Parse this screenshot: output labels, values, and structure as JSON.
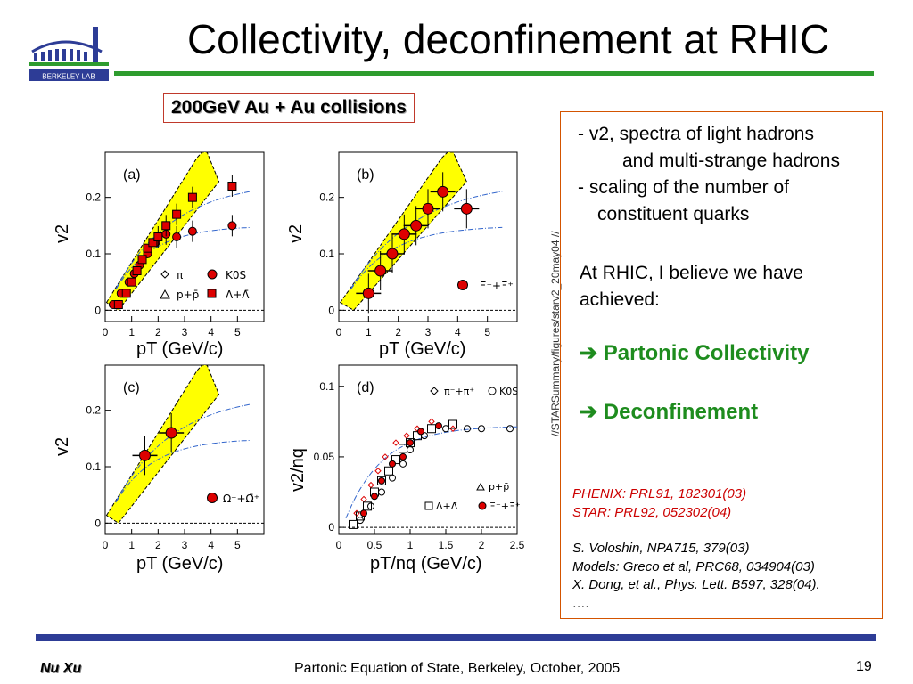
{
  "header": {
    "logo_text": "BERKELEY LAB",
    "title": "Collectivity, deconfinement at RHIC",
    "subtitle": "200GeV Au + Au collisions"
  },
  "figure_caption": "//STARSummary/figures/starv2_20may04 //",
  "panels": {
    "a": {
      "label": "(a)",
      "ylabel": "v2",
      "xlabel": "pT (GeV/c)",
      "legend": [
        "π",
        "K0S",
        "p+p̄",
        "Λ+Λ̄"
      ]
    },
    "b": {
      "label": "(b)",
      "ylabel": "v2",
      "xlabel": "pT (GeV/c)",
      "legend": [
        "Ξ⁻+Ξ̄⁺"
      ]
    },
    "c": {
      "label": "(c)",
      "ylabel": "v2",
      "xlabel": "pT (GeV/c)",
      "legend": [
        "Ω⁻+Ω̄⁺"
      ]
    },
    "d": {
      "label": "(d)",
      "ylabel": "v2/nq",
      "xlabel": "pT/nq (GeV/c)",
      "legend": [
        "π⁻+π⁺",
        "K0S",
        "p+p̄",
        "Λ+Λ̄",
        "Ξ⁻+Ξ̄⁺"
      ]
    }
  },
  "right_box": {
    "bullet1_line1": "-  v2, spectra of light hadrons",
    "bullet1_line2": "and multi-strange hadrons",
    "bullet2_line1": "-  scaling of the number of",
    "bullet2_line2": "constituent quarks",
    "note": "At RHIC, I believe we have achieved:",
    "point1": "Partonic Collectivity",
    "point2": "Deconfinement",
    "ref_phenix": "PHENIX: PRL91, 182301(03)",
    "ref_star": "STAR: PRL92, 052302(04)",
    "ref_voloshin": "S. Voloshin, NPA715, 379(03)",
    "ref_models": "Models: Greco et al, PRC68, 034904(03)",
    "ref_dong": "X. Dong, et al., Phys. Lett. B597, 328(04).",
    "ref_more": "…."
  },
  "footer": {
    "author": "Nu Xu",
    "text": "Partonic Equation of State, Berkeley, October, 2005",
    "page": "19"
  },
  "colors": {
    "title_rule": "#2e9c2e",
    "box_border": "#d35400",
    "footer_rule": "#2d3c96",
    "green_text": "#1e8c1e",
    "marker_red": "#dd0000",
    "band_yellow": "#ffff00"
  },
  "chart_data": [
    {
      "type": "scatter",
      "title": "(a)",
      "xlabel": "pT (GeV/c)",
      "ylabel": "v2",
      "xlim": [
        0,
        6
      ],
      "ylim": [
        -0.02,
        0.28
      ],
      "x_ticks": [
        0,
        1,
        2,
        3,
        4,
        5
      ],
      "y_ticks": [
        0,
        0.1,
        0.2
      ],
      "series": [
        {
          "name": "K0S",
          "x": [
            0.3,
            0.6,
            0.9,
            1.1,
            1.3,
            1.6,
            1.9,
            2.3,
            2.7,
            3.3,
            4.8
          ],
          "y": [
            0.01,
            0.03,
            0.05,
            0.065,
            0.08,
            0.1,
            0.12,
            0.135,
            0.13,
            0.14,
            0.15
          ]
        },
        {
          "name": "Λ+Λ̄",
          "x": [
            0.5,
            0.8,
            1.0,
            1.2,
            1.4,
            1.6,
            1.8,
            2.0,
            2.3,
            2.7,
            3.3,
            4.8
          ],
          "y": [
            0.01,
            0.03,
            0.05,
            0.07,
            0.09,
            0.11,
            0.12,
            0.13,
            0.15,
            0.17,
            0.2,
            0.22
          ]
        }
      ]
    },
    {
      "type": "scatter",
      "title": "(b)",
      "xlabel": "pT (GeV/c)",
      "ylabel": "v2",
      "xlim": [
        0,
        6
      ],
      "ylim": [
        -0.02,
        0.28
      ],
      "x_ticks": [
        0,
        1,
        2,
        3,
        4,
        5
      ],
      "y_ticks": [
        0,
        0.1,
        0.2
      ],
      "series": [
        {
          "name": "Ξ⁻+Ξ̄⁺",
          "x": [
            1.0,
            1.4,
            1.8,
            2.2,
            2.6,
            3.0,
            3.5,
            4.3
          ],
          "y": [
            0.03,
            0.07,
            0.1,
            0.135,
            0.15,
            0.18,
            0.21,
            0.18
          ]
        }
      ]
    },
    {
      "type": "scatter",
      "title": "(c)",
      "xlabel": "pT (GeV/c)",
      "ylabel": "v2",
      "xlim": [
        0,
        6
      ],
      "ylim": [
        -0.02,
        0.28
      ],
      "x_ticks": [
        0,
        1,
        2,
        3,
        4,
        5
      ],
      "y_ticks": [
        0,
        0.1,
        0.2
      ],
      "series": [
        {
          "name": "Ω⁻+Ω̄⁺",
          "x": [
            1.5,
            2.5
          ],
          "y": [
            0.12,
            0.16
          ]
        }
      ]
    },
    {
      "type": "scatter",
      "title": "(d)",
      "xlabel": "pT/nq (GeV/c)",
      "ylabel": "v2/nq",
      "xlim": [
        0,
        2.5
      ],
      "ylim": [
        -0.005,
        0.115
      ],
      "x_ticks": [
        0,
        0.5,
        1,
        1.5,
        2,
        2.5
      ],
      "y_ticks": [
        0,
        0.05,
        0.1
      ],
      "series": [
        {
          "name": "π⁻+π⁺",
          "x": [
            0.25,
            0.35,
            0.45,
            0.55,
            0.65,
            0.8,
            0.95,
            1.1,
            1.3,
            1.6
          ],
          "y": [
            0.01,
            0.02,
            0.03,
            0.04,
            0.05,
            0.06,
            0.065,
            0.07,
            0.075,
            0.07
          ]
        },
        {
          "name": "K0S",
          "x": [
            0.3,
            0.45,
            0.6,
            0.75,
            0.9,
            1.0,
            1.2,
            1.5,
            1.8,
            2.0,
            2.4
          ],
          "y": [
            0.005,
            0.015,
            0.025,
            0.035,
            0.045,
            0.055,
            0.065,
            0.07,
            0.07,
            0.07,
            0.07
          ]
        },
        {
          "name": "Λ+Λ̄",
          "x": [
            0.2,
            0.3,
            0.4,
            0.5,
            0.6,
            0.7,
            0.8,
            0.9,
            1.0,
            1.1,
            1.3,
            1.6
          ],
          "y": [
            0.002,
            0.008,
            0.015,
            0.025,
            0.033,
            0.04,
            0.048,
            0.056,
            0.06,
            0.065,
            0.07,
            0.073
          ]
        },
        {
          "name": "Ξ⁻+Ξ̄⁺",
          "x": [
            0.35,
            0.5,
            0.6,
            0.75,
            0.9,
            1.0,
            1.15,
            1.4
          ],
          "y": [
            0.01,
            0.022,
            0.033,
            0.045,
            0.05,
            0.06,
            0.068,
            0.072
          ]
        }
      ]
    }
  ]
}
